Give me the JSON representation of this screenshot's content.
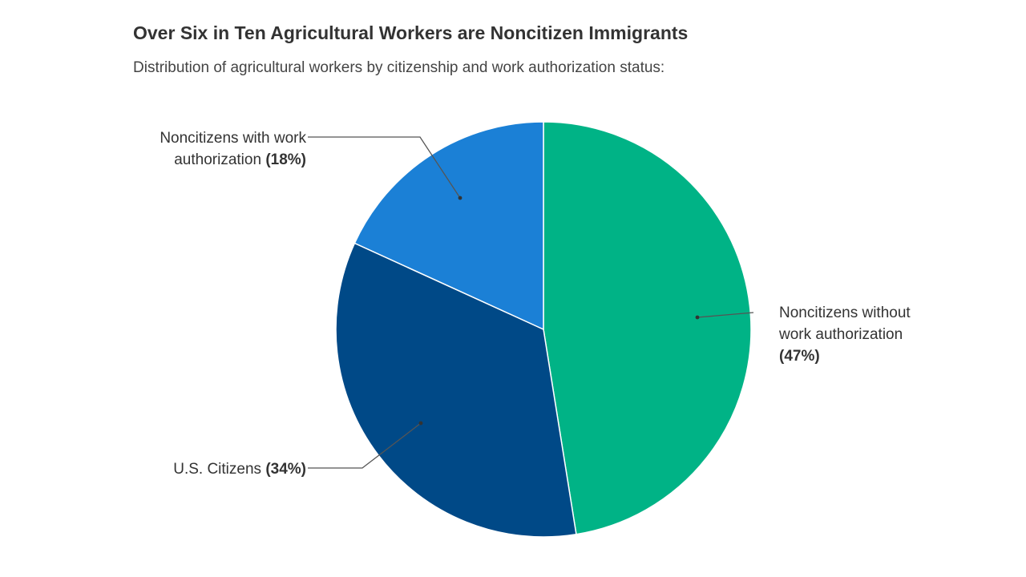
{
  "chart_data": {
    "type": "pie",
    "title": "Over Six in Ten Agricultural Workers are Noncitizen Immigrants",
    "subtitle": "Distribution of agricultural workers by citizenship and work authorization status:",
    "legend": "none",
    "start_angle_deg": 0,
    "direction": "clockwise",
    "slices": [
      {
        "name": "Noncitizens without work authorization",
        "label_lines": [
          "Noncitizens without",
          "work authorization"
        ],
        "percent_label": "(47%)",
        "value": 47,
        "color": "#00b386"
      },
      {
        "name": "U.S. Citizens",
        "label_lines": [
          "U.S. Citizens"
        ],
        "percent_label": "(34%)",
        "value": 34,
        "color": "#004987"
      },
      {
        "name": "Noncitizens with work authorization",
        "label_lines": [
          "Noncitizens with work",
          "authorization"
        ],
        "percent_label": "(18%)",
        "value": 18,
        "color": "#1b80d6"
      }
    ]
  }
}
